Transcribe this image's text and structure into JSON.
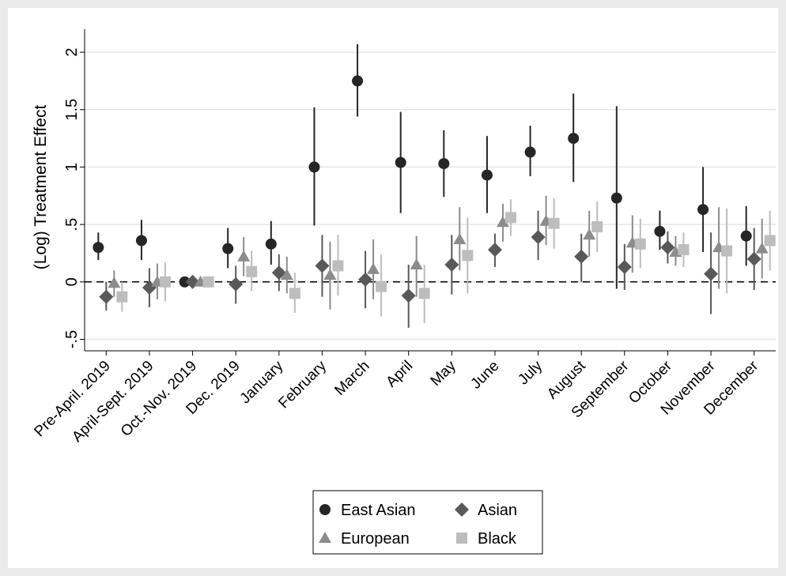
{
  "chart_data": {
    "type": "scatter",
    "subtype": "coefficient plot with 95% confidence intervals",
    "title": "",
    "xlabel": "",
    "ylabel": "(Log) Treatment Effect",
    "ylim": [
      -0.6,
      2.2
    ],
    "yticks": [
      -0.5,
      0,
      0.5,
      1,
      1.5,
      2
    ],
    "ytick_labels": [
      "-.5",
      "0",
      ".5",
      "1",
      "1.5",
      "2"
    ],
    "reference_line": {
      "y": 0,
      "style": "dashed"
    },
    "grid": "horizontal",
    "legend_position": "bottom",
    "categories": [
      "Pre-April. 2019",
      "April-Sept. 2019",
      "Oct.-Nov. 2019",
      "Dec. 2019",
      "January",
      "February",
      "March",
      "April",
      "May",
      "June",
      "July",
      "August",
      "September",
      "October",
      "November",
      "December"
    ],
    "series": [
      {
        "name": "East Asian",
        "marker": "circle",
        "color": "#262626",
        "values": [
          0.3,
          0.36,
          0.0,
          0.29,
          0.33,
          1.0,
          1.75,
          1.04,
          1.03,
          0.93,
          1.13,
          1.25,
          0.73,
          0.44,
          0.63,
          0.4
        ],
        "ci_low": [
          0.19,
          0.19,
          0.0,
          0.12,
          0.15,
          0.49,
          1.44,
          0.6,
          0.74,
          0.6,
          0.92,
          0.87,
          -0.06,
          0.28,
          0.26,
          0.14
        ],
        "ci_high": [
          0.43,
          0.54,
          0.0,
          0.47,
          0.53,
          1.52,
          2.07,
          1.48,
          1.32,
          1.27,
          1.36,
          1.64,
          1.53,
          0.62,
          1.0,
          0.66
        ]
      },
      {
        "name": "Asian",
        "marker": "diamond",
        "color": "#595959",
        "values": [
          -0.13,
          -0.05,
          0.0,
          -0.02,
          0.08,
          0.14,
          0.02,
          -0.12,
          0.15,
          0.28,
          0.39,
          0.22,
          0.13,
          0.3,
          0.07,
          0.2
        ],
        "ci_low": [
          -0.25,
          -0.22,
          0.0,
          -0.19,
          -0.08,
          -0.13,
          -0.23,
          -0.4,
          -0.11,
          0.13,
          0.19,
          0.0,
          -0.07,
          0.16,
          -0.28,
          -0.07
        ],
        "ci_high": [
          0.0,
          0.12,
          0.0,
          0.14,
          0.24,
          0.41,
          0.27,
          0.15,
          0.41,
          0.42,
          0.62,
          0.42,
          0.33,
          0.44,
          0.43,
          0.47
        ]
      },
      {
        "name": "European",
        "marker": "triangle",
        "color": "#8c8c8c",
        "values": [
          -0.01,
          0.0,
          0.0,
          0.22,
          0.06,
          0.06,
          0.11,
          0.15,
          0.37,
          0.52,
          0.53,
          0.41,
          0.34,
          0.26,
          0.3,
          0.29
        ],
        "ci_low": [
          -0.13,
          -0.15,
          0.0,
          0.05,
          -0.1,
          -0.24,
          -0.15,
          -0.13,
          0.1,
          0.35,
          0.32,
          0.22,
          0.08,
          0.14,
          -0.06,
          0.03
        ],
        "ci_high": [
          0.1,
          0.16,
          0.0,
          0.39,
          0.22,
          0.35,
          0.37,
          0.4,
          0.65,
          0.68,
          0.75,
          0.62,
          0.58,
          0.4,
          0.65,
          0.55
        ]
      },
      {
        "name": "Black",
        "marker": "square",
        "color": "#bdbdbd",
        "values": [
          -0.13,
          0.0,
          0.0,
          0.09,
          -0.1,
          0.14,
          -0.04,
          -0.1,
          0.23,
          0.56,
          0.51,
          0.48,
          0.33,
          0.28,
          0.27,
          0.36
        ],
        "ci_low": [
          -0.26,
          -0.17,
          0.0,
          -0.08,
          -0.27,
          -0.12,
          -0.3,
          -0.36,
          -0.1,
          0.4,
          0.29,
          0.26,
          0.12,
          0.13,
          -0.1,
          0.1
        ],
        "ci_high": [
          0.0,
          0.17,
          0.0,
          0.27,
          0.08,
          0.41,
          0.24,
          0.15,
          0.56,
          0.72,
          0.73,
          0.7,
          0.55,
          0.43,
          0.64,
          0.62
        ]
      }
    ]
  }
}
